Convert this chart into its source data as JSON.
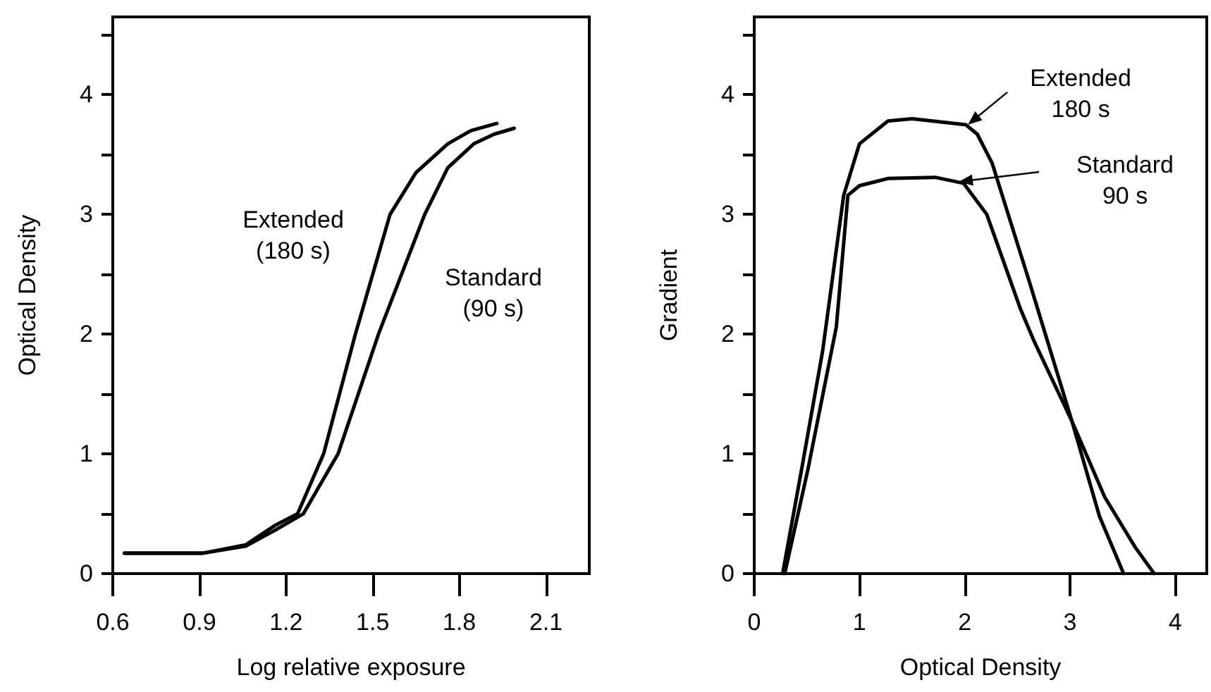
{
  "chart_data": [
    {
      "type": "line",
      "xlabel": "Log relative exposure",
      "ylabel": "Optical Density",
      "xlim": [
        0.6,
        2.25
      ],
      "xticks": [
        0.6,
        0.9,
        1.2,
        1.5,
        1.8,
        2.1
      ],
      "ylim": [
        0,
        4.65
      ],
      "yticks": [
        0,
        {
          "value": 0.5,
          "label": null
        },
        1,
        {
          "value": 1.5,
          "label": null
        },
        2,
        {
          "value": 2.5,
          "label": null
        },
        3,
        {
          "value": 3.5,
          "label": null
        },
        4,
        {
          "value": 4.5,
          "label": null
        }
      ],
      "series": [
        {
          "color": "#000000",
          "x": [
            0.64,
            0.91,
            1.06,
            1.16,
            1.24,
            1.33,
            1.44,
            1.56,
            1.65,
            1.76,
            1.84,
            1.93
          ],
          "values": [
            0.17,
            0.17,
            0.24,
            0.4,
            0.5,
            1,
            2,
            3,
            3.35,
            3.59,
            3.7,
            3.76
          ]
        },
        {
          "color": "#000000",
          "x": [
            0.64,
            0.91,
            1.06,
            1.16,
            1.26,
            1.38,
            1.52,
            1.68,
            1.76,
            1.85,
            1.92,
            1.99
          ],
          "values": [
            0.17,
            0.17,
            0.23,
            0.36,
            0.5,
            1,
            2,
            3,
            3.39,
            3.59,
            3.67,
            3.72
          ]
        }
      ],
      "annotations": [
        "Extended\n(180 s)",
        "Standard\n(90 s)"
      ]
    },
    {
      "type": "line",
      "xlabel": "Optical Density",
      "ylabel": "Gradient",
      "xlim": [
        0,
        4.3
      ],
      "xticks": [
        0,
        1,
        2,
        3,
        4
      ],
      "ylim": [
        0,
        4.65
      ],
      "yticks": [
        0,
        {
          "value": 0.5,
          "label": null
        },
        1,
        {
          "value": 1.5,
          "label": null
        },
        2,
        {
          "value": 2.5,
          "label": null
        },
        3,
        {
          "value": 3.5,
          "label": null
        },
        4,
        {
          "value": 4.5,
          "label": null
        }
      ],
      "series": [
        {
          "color": "#000000",
          "x": [
            0.27,
            0.45,
            0.65,
            0.85,
            1.0,
            1.27,
            1.5,
            2.01,
            2.12,
            2.26,
            2.61,
            3.02,
            3.33,
            3.62,
            3.8
          ],
          "values": [
            0,
            0.87,
            1.86,
            3.16,
            3.59,
            3.78,
            3.8,
            3.75,
            3.67,
            3.43,
            2.45,
            1.27,
            0.64,
            0.22,
            0
          ]
        },
        {
          "color": "#000000",
          "x": [
            0.29,
            0.51,
            0.78,
            0.89,
            1.0,
            1.18,
            1.27,
            1.72,
            1.99,
            2.21,
            2.53,
            2.66,
            3.02,
            3.28,
            3.51
          ],
          "values": [
            0,
            0.87,
            2.06,
            3.16,
            3.24,
            3.28,
            3.3,
            3.31,
            3.26,
            3.0,
            2.21,
            1.94,
            1.27,
            0.48,
            0
          ]
        }
      ],
      "annotations": [
        {
          "text": "Extended\n180 s",
          "x": 2.03,
          "y": 3.75
        },
        "Standard\n90 s"
      ]
    }
  ]
}
